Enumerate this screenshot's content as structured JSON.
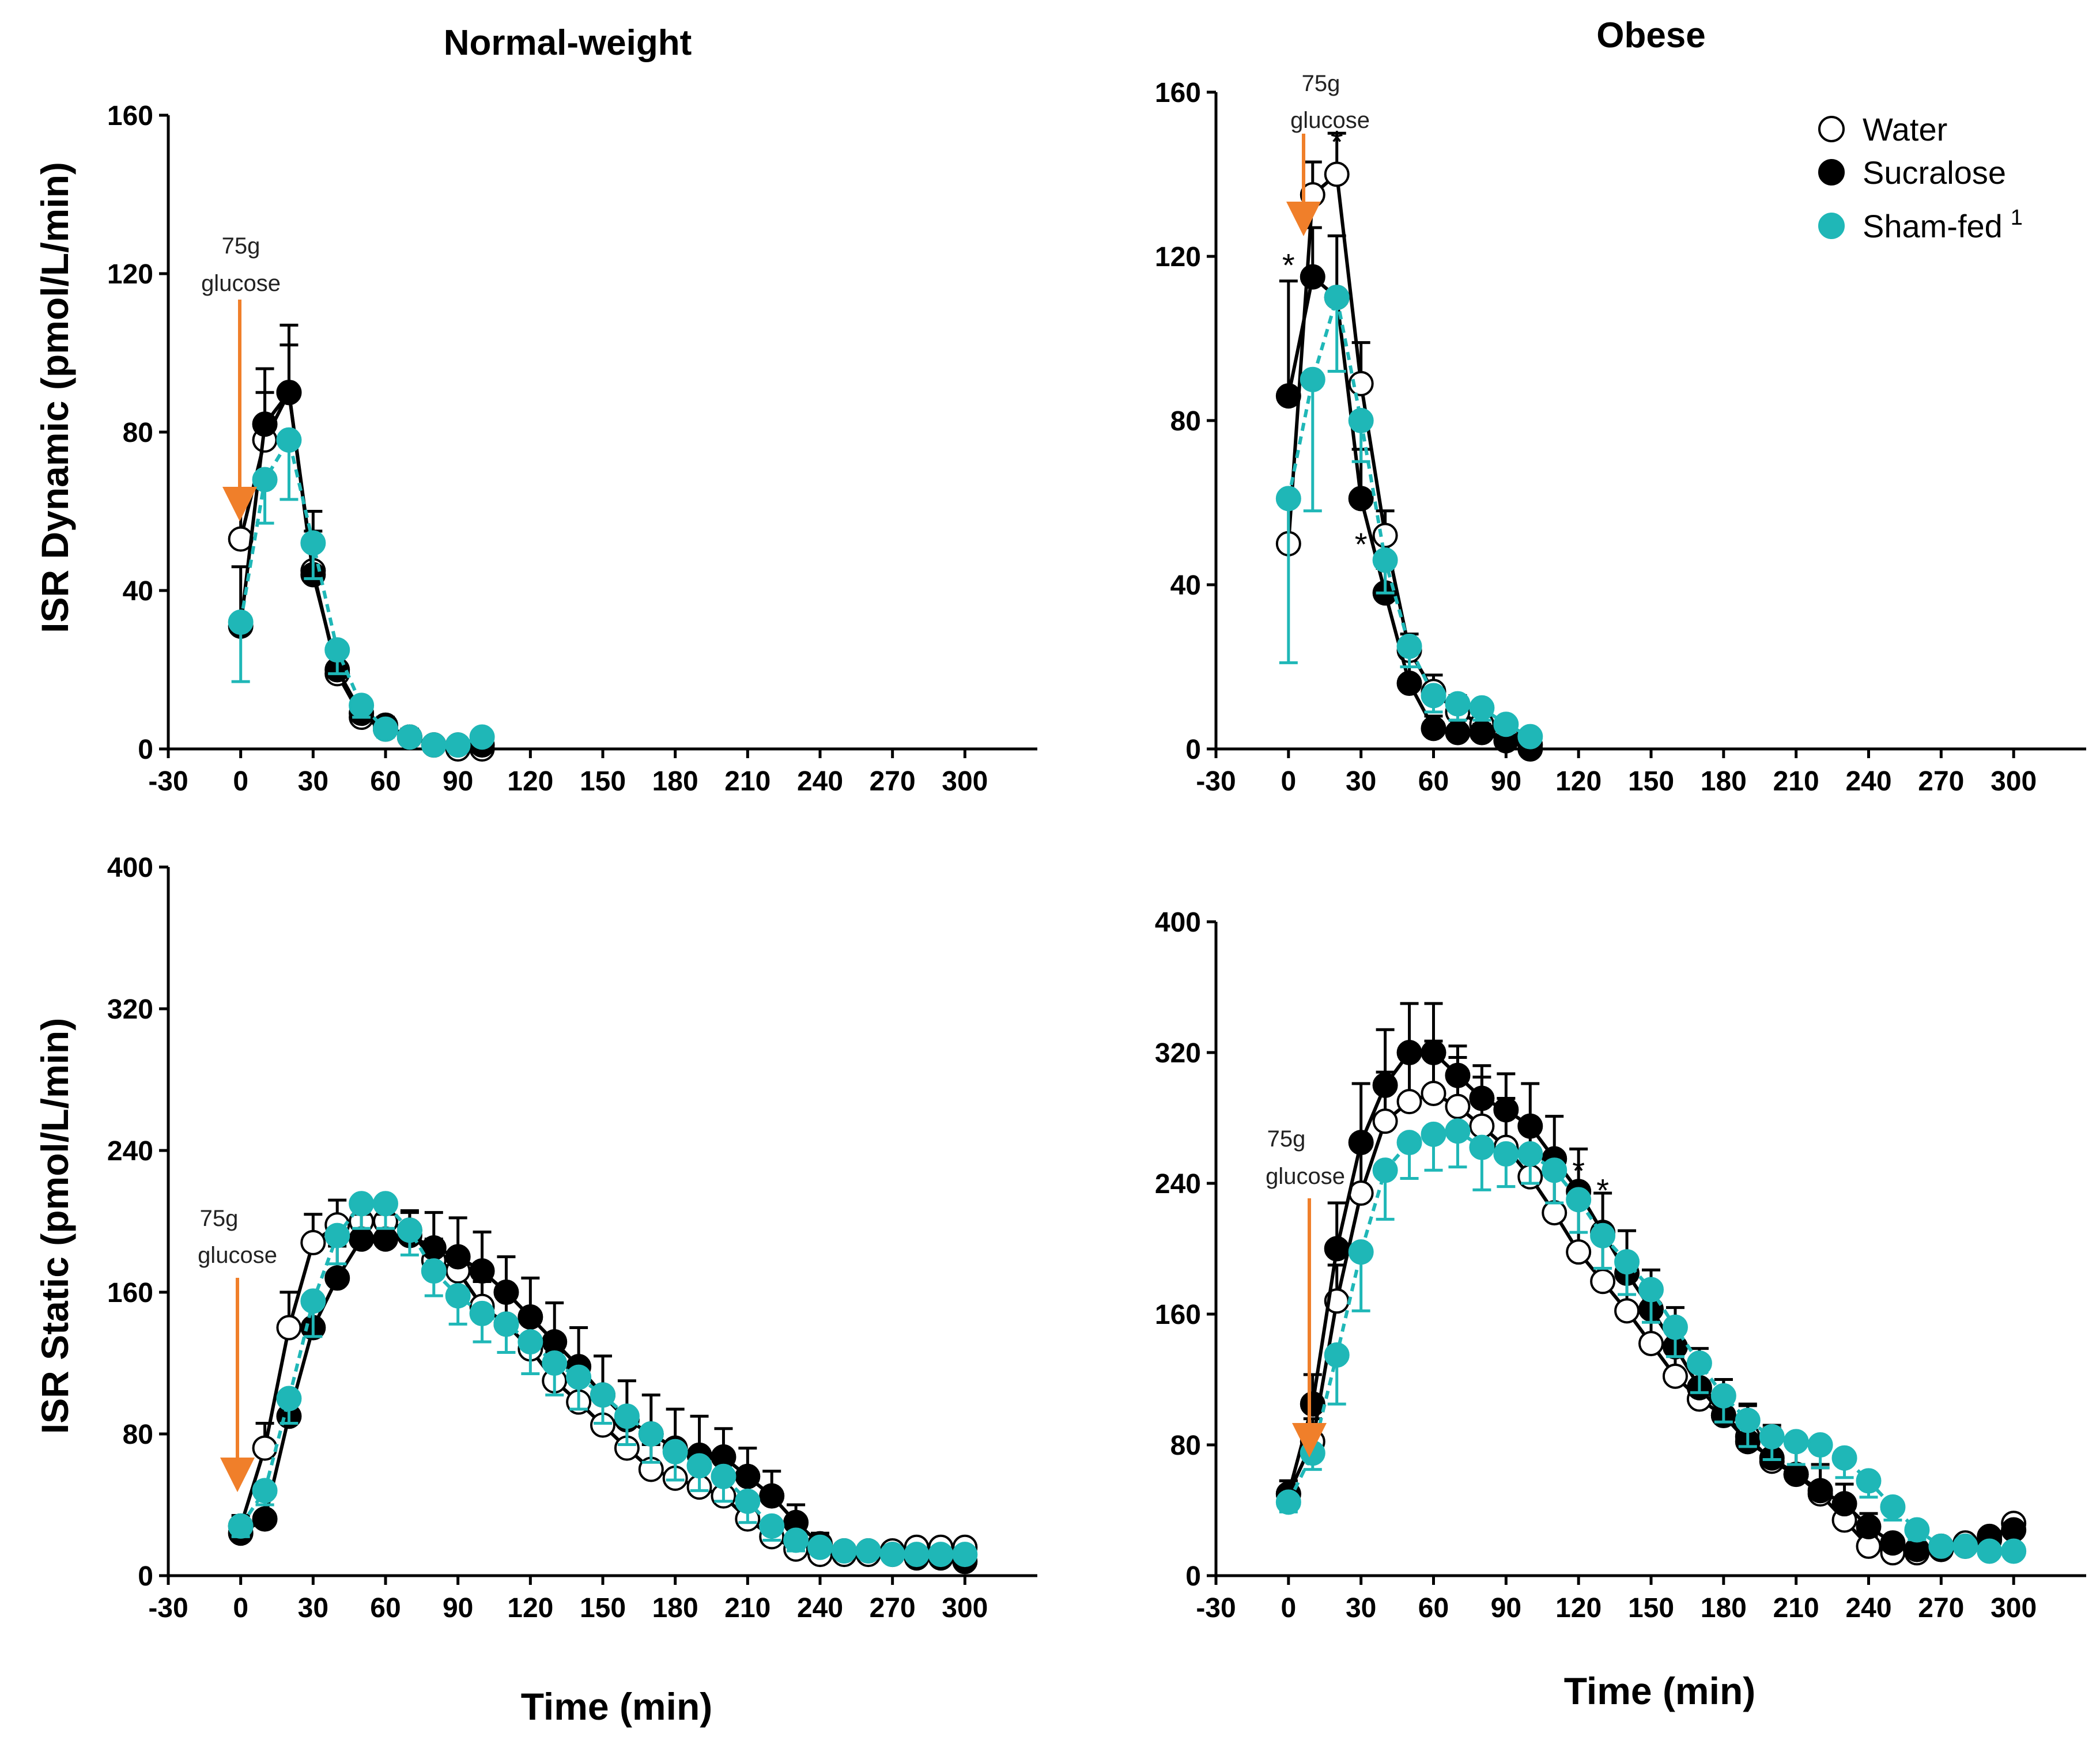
{
  "figure": {
    "colors": {
      "water": "#ffffff",
      "sucralose": "#000000",
      "sham": "#1fb7b7",
      "arrow": "#f07f2a"
    },
    "legend": {
      "water": "Water",
      "sucralose": "Sucralose",
      "sham": "Sham-fed",
      "sham_superscript": "1"
    },
    "annotation": {
      "line1": "75g",
      "line2": "glucose"
    },
    "star": "*"
  },
  "chart_data": [
    {
      "id": "nw-dynamic",
      "type": "line",
      "title": "Normal-weight",
      "ylabel": "ISR Dynamic (pmol/L/min)",
      "xlabel": "",
      "xlim": [
        -30,
        330
      ],
      "ylim": [
        0,
        160
      ],
      "xticks": [
        "-30",
        "0",
        "30",
        "60",
        "90",
        "120",
        "150",
        "180",
        "210",
        "240",
        "270",
        "300"
      ],
      "yticks": [
        "0",
        "40",
        "80",
        "120",
        "160"
      ],
      "x": [
        0,
        10,
        20,
        30,
        40,
        50,
        60,
        70,
        80,
        90,
        100
      ],
      "series": [
        {
          "name": "Water",
          "values": [
            53,
            78,
            90,
            45,
            19,
            8,
            5,
            3,
            1,
            0,
            0
          ],
          "err": [
            10,
            12,
            12,
            10,
            6,
            3,
            2,
            2,
            1,
            1,
            1
          ]
        },
        {
          "name": "Sucralose",
          "values": [
            31,
            82,
            90,
            44,
            20,
            9,
            6,
            3,
            1,
            1,
            1
          ],
          "err": [
            15,
            14,
            17,
            16,
            6,
            3,
            2,
            2,
            1,
            1,
            1
          ]
        },
        {
          "name": "Sham-fed",
          "values": [
            32,
            68,
            78,
            52,
            25,
            11,
            5,
            3,
            1,
            1,
            3
          ],
          "err": [
            15,
            11,
            15,
            9,
            6,
            3,
            2,
            2,
            1,
            1,
            1
          ]
        }
      ],
      "stars": []
    },
    {
      "id": "ob-dynamic",
      "type": "line",
      "title": "Obese",
      "ylabel": "",
      "xlabel": "",
      "xlim": [
        -30,
        330
      ],
      "ylim": [
        0,
        160
      ],
      "xticks": [
        "-30",
        "0",
        "30",
        "60",
        "90",
        "120",
        "150",
        "180",
        "210",
        "240",
        "270",
        "300"
      ],
      "yticks": [
        "0",
        "40",
        "80",
        "120",
        "160"
      ],
      "x": [
        0,
        10,
        20,
        30,
        40,
        50,
        60,
        70,
        80,
        90,
        100
      ],
      "series": [
        {
          "name": "Water",
          "values": [
            50,
            135,
            140,
            89,
            52,
            24,
            14,
            9,
            6,
            4,
            1
          ],
          "err": [
            12,
            8,
            10,
            10,
            6,
            4,
            4,
            4,
            3,
            2,
            1
          ]
        },
        {
          "name": "Sucralose",
          "values": [
            86,
            115,
            110,
            61,
            38,
            16,
            5,
            4,
            4,
            2,
            0
          ],
          "err": [
            28,
            12,
            15,
            12,
            6,
            4,
            3,
            3,
            2,
            2,
            1
          ]
        },
        {
          "name": "Sham-fed",
          "values": [
            61,
            90,
            110,
            80,
            46,
            25,
            13,
            11,
            10,
            6,
            3
          ],
          "err": [
            40,
            32,
            18,
            10,
            8,
            5,
            4,
            4,
            3,
            2,
            1
          ]
        }
      ],
      "stars": [
        [
          0,
          118
        ],
        [
          20,
          148
        ],
        [
          30,
          50
        ]
      ]
    },
    {
      "id": "nw-static",
      "type": "line",
      "title": "",
      "ylabel": "ISR Static (pmol/L/min)",
      "xlabel": "Time (min)",
      "xlim": [
        -30,
        330
      ],
      "ylim": [
        0,
        400
      ],
      "xticks": [
        "-30",
        "0",
        "30",
        "60",
        "90",
        "120",
        "150",
        "180",
        "210",
        "240",
        "270",
        "300"
      ],
      "yticks": [
        "0",
        "80",
        "160",
        "240",
        "320",
        "400"
      ],
      "x": [
        0,
        10,
        20,
        30,
        40,
        50,
        60,
        70,
        80,
        90,
        100,
        110,
        120,
        130,
        140,
        150,
        160,
        170,
        180,
        190,
        200,
        210,
        220,
        230,
        240,
        250,
        260,
        270,
        280,
        290,
        300
      ],
      "series": [
        {
          "name": "Water",
          "values": [
            28,
            72,
            140,
            188,
            198,
            200,
            200,
            195,
            178,
            172,
            152,
            142,
            128,
            110,
            98,
            85,
            72,
            60,
            55,
            50,
            45,
            32,
            22,
            15,
            12,
            12,
            12,
            14,
            16,
            16,
            16
          ],
          "err": [
            6,
            14,
            20,
            16,
            14,
            10,
            10,
            10,
            12,
            12,
            14,
            15,
            16,
            16,
            16,
            14,
            14,
            14,
            14,
            12,
            12,
            10,
            8,
            6,
            5,
            4,
            4,
            4,
            4,
            4,
            4
          ]
        },
        {
          "name": "Sucralose",
          "values": [
            24,
            32,
            90,
            140,
            168,
            190,
            190,
            192,
            185,
            180,
            172,
            160,
            146,
            132,
            118,
            102,
            88,
            80,
            72,
            68,
            67,
            56,
            45,
            30,
            18,
            14,
            14,
            12,
            10,
            10,
            8
          ],
          "err": [
            6,
            8,
            12,
            16,
            18,
            14,
            14,
            14,
            20,
            22,
            22,
            20,
            22,
            22,
            22,
            22,
            22,
            22,
            22,
            22,
            16,
            16,
            14,
            10,
            6,
            4,
            4,
            4,
            4,
            4,
            4
          ]
        },
        {
          "name": "Sham-fed",
          "values": [
            28,
            48,
            100,
            155,
            192,
            210,
            210,
            195,
            172,
            158,
            148,
            142,
            132,
            120,
            112,
            102,
            90,
            80,
            70,
            62,
            56,
            42,
            28,
            20,
            16,
            14,
            14,
            12,
            12,
            12,
            12
          ],
          "err": [
            6,
            8,
            14,
            20,
            16,
            14,
            14,
            14,
            14,
            16,
            16,
            16,
            18,
            18,
            18,
            16,
            16,
            16,
            16,
            14,
            14,
            12,
            8,
            6,
            4,
            4,
            4,
            4,
            4,
            4,
            4
          ]
        }
      ],
      "stars": []
    },
    {
      "id": "ob-static",
      "type": "line",
      "title": "",
      "ylabel": "",
      "xlabel": "Time (min)",
      "xlim": [
        -30,
        330
      ],
      "ylim": [
        0,
        400
      ],
      "xticks": [
        "-30",
        "0",
        "30",
        "60",
        "90",
        "120",
        "150",
        "180",
        "210",
        "240",
        "270",
        "300"
      ],
      "yticks": [
        "0",
        "80",
        "160",
        "240",
        "320",
        "400"
      ],
      "x": [
        0,
        10,
        20,
        30,
        40,
        50,
        60,
        70,
        80,
        90,
        100,
        110,
        120,
        130,
        140,
        150,
        160,
        170,
        180,
        190,
        200,
        210,
        220,
        230,
        240,
        250,
        260,
        270,
        280,
        290,
        300
      ],
      "series": [
        {
          "name": "Water",
          "values": [
            50,
            82,
            168,
            234,
            278,
            290,
            295,
            287,
            275,
            262,
            244,
            222,
            198,
            180,
            162,
            142,
            122,
            108,
            98,
            85,
            70,
            62,
            50,
            34,
            18,
            14,
            14,
            18,
            20,
            22,
            32
          ],
          "err": [
            8,
            14,
            22,
            30,
            30,
            32,
            32,
            30,
            30,
            30,
            30,
            30,
            28,
            26,
            26,
            24,
            22,
            22,
            22,
            20,
            20,
            18,
            16,
            10,
            6,
            4,
            4,
            4,
            4,
            4,
            4
          ]
        },
        {
          "name": "Sucralose",
          "values": [
            50,
            105,
            200,
            265,
            300,
            320,
            320,
            306,
            292,
            285,
            275,
            255,
            235,
            210,
            185,
            163,
            140,
            115,
            98,
            82,
            72,
            62,
            52,
            44,
            30,
            20,
            16,
            16,
            18,
            24,
            28
          ],
          "err": [
            8,
            18,
            28,
            36,
            34,
            30,
            30,
            18,
            20,
            22,
            26,
            26,
            26,
            24,
            26,
            24,
            24,
            24,
            22,
            22,
            20,
            18,
            16,
            12,
            8,
            4,
            4,
            4,
            4,
            4,
            4
          ]
        },
        {
          "name": "Sham-fed",
          "values": [
            45,
            75,
            135,
            198,
            248,
            265,
            270,
            272,
            262,
            258,
            258,
            248,
            230,
            208,
            192,
            175,
            152,
            130,
            110,
            95,
            85,
            82,
            80,
            72,
            58,
            42,
            28,
            18,
            18,
            15,
            15
          ],
          "err": [
            6,
            10,
            30,
            36,
            30,
            22,
            22,
            22,
            26,
            20,
            18,
            20,
            20,
            20,
            20,
            20,
            18,
            18,
            16,
            16,
            14,
            14,
            14,
            12,
            10,
            8,
            6,
            4,
            4,
            4,
            4
          ]
        }
      ],
      "stars": [
        [
          120,
          248
        ],
        [
          130,
          236
        ]
      ]
    }
  ]
}
